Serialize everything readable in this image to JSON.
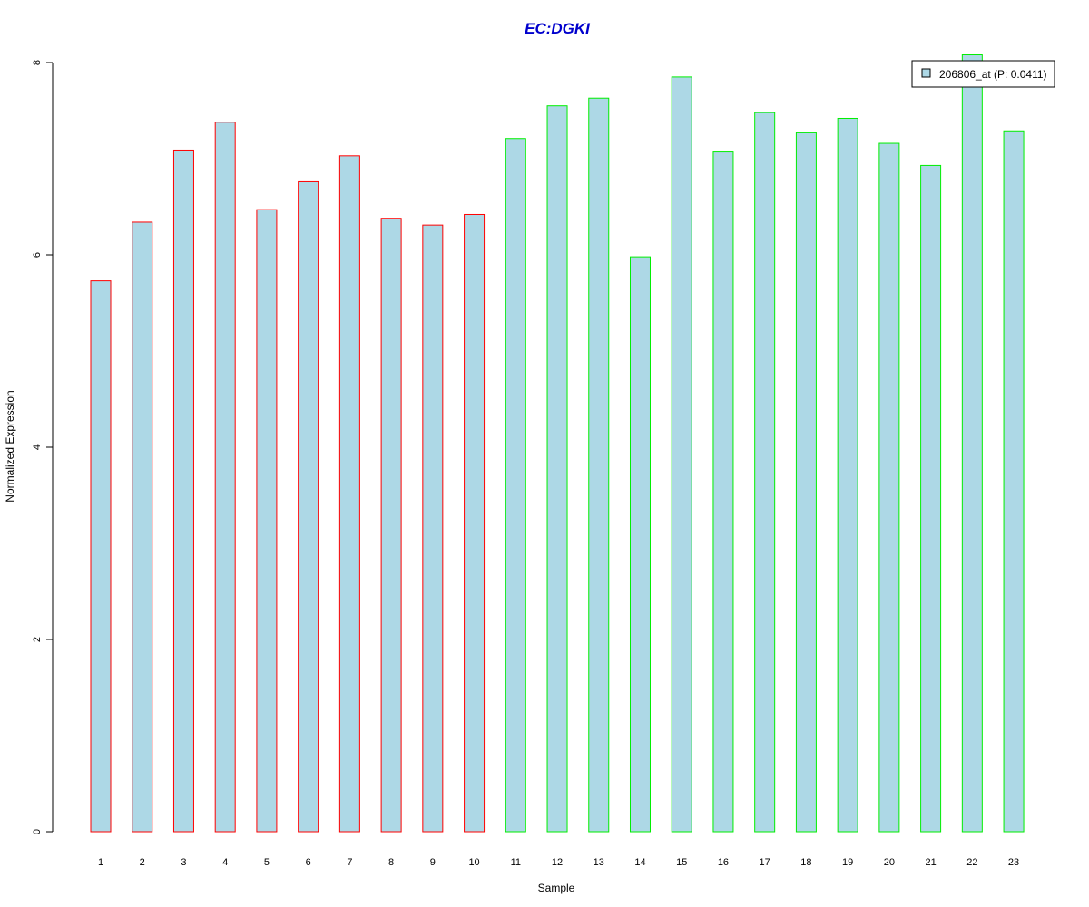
{
  "chart_data": {
    "type": "bar",
    "title": "EC:DGKI",
    "xlabel": "Sample",
    "ylabel": "Normalized Expression",
    "ylim": [
      0,
      8
    ],
    "yticks": [
      0,
      2,
      4,
      6,
      8
    ],
    "categories": [
      "1",
      "2",
      "3",
      "4",
      "5",
      "6",
      "7",
      "8",
      "9",
      "10",
      "11",
      "12",
      "13",
      "14",
      "15",
      "16",
      "17",
      "18",
      "19",
      "20",
      "21",
      "22",
      "23"
    ],
    "values": [
      5.73,
      6.34,
      7.09,
      7.38,
      6.47,
      6.76,
      7.03,
      6.38,
      6.31,
      6.42,
      7.21,
      7.55,
      7.63,
      5.98,
      7.85,
      7.07,
      7.48,
      7.27,
      7.42,
      7.16,
      6.93,
      8.08,
      7.29
    ],
    "groups": [
      "red",
      "red",
      "red",
      "red",
      "red",
      "red",
      "red",
      "red",
      "red",
      "red",
      "green",
      "green",
      "green",
      "green",
      "green",
      "green",
      "green",
      "green",
      "green",
      "green",
      "green",
      "green",
      "green"
    ],
    "series": [
      {
        "name": "206806_at (P: 0.0411)",
        "values": [
          5.73,
          6.34,
          7.09,
          7.38,
          6.47,
          6.76,
          7.03,
          6.38,
          6.31,
          6.42,
          7.21,
          7.55,
          7.63,
          5.98,
          7.85,
          7.07,
          7.48,
          7.27,
          7.42,
          7.16,
          6.93,
          8.08,
          7.29
        ]
      }
    ],
    "legend": "top-right",
    "grid": false
  },
  "colors": {
    "bar_fill": "#add8e6",
    "group_red": "#ff0000",
    "group_green": "#00ee00",
    "title": "#0000cd",
    "axis": "#000000"
  }
}
